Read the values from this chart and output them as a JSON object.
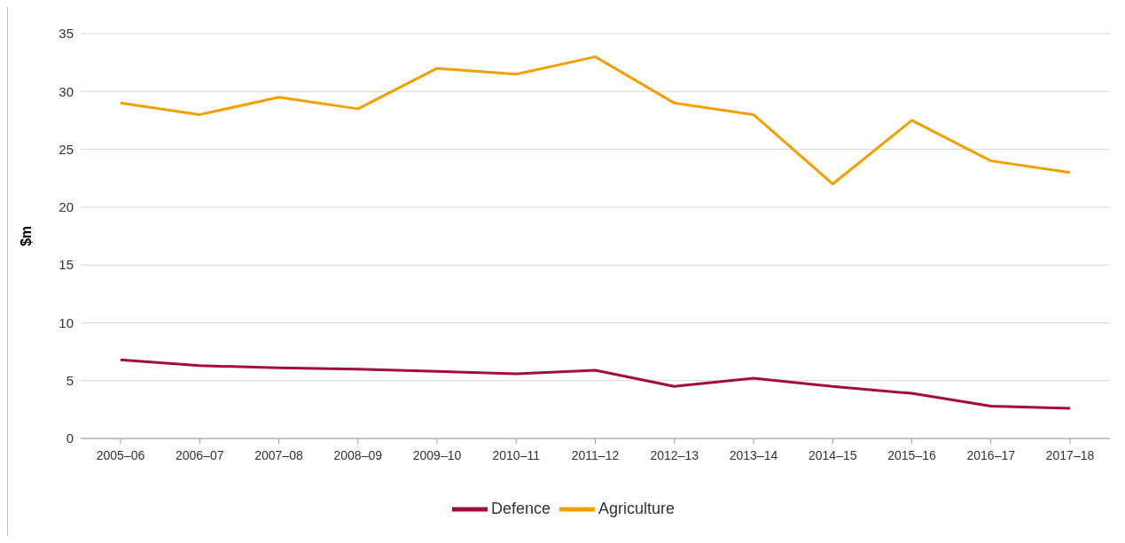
{
  "chart_data": {
    "type": "line",
    "ylabel": "$m",
    "categories": [
      "2005–06",
      "2006–07",
      "2007–08",
      "2008–09",
      "2009–10",
      "2010–11",
      "2011–12",
      "2012–13",
      "2013–14",
      "2014–15",
      "2015–16",
      "2016–17",
      "2017–18"
    ],
    "series": [
      {
        "name": "Defence",
        "color": "#a50a3c",
        "values": [
          6.8,
          6.3,
          6.1,
          6.0,
          5.8,
          5.6,
          5.9,
          4.5,
          5.2,
          4.5,
          3.9,
          2.8,
          2.6
        ]
      },
      {
        "name": "Agriculture",
        "color": "#f2a000",
        "values": [
          29,
          28,
          29.5,
          28.5,
          32,
          31.5,
          33,
          29,
          28,
          22,
          27.5,
          24,
          23
        ]
      }
    ],
    "ylim": [
      0,
      35
    ],
    "yticks": [
      0,
      5,
      10,
      15,
      20,
      25,
      30,
      35
    ],
    "grid": "y",
    "legend": "bottom",
    "marker": "none",
    "line_style": "solid"
  }
}
